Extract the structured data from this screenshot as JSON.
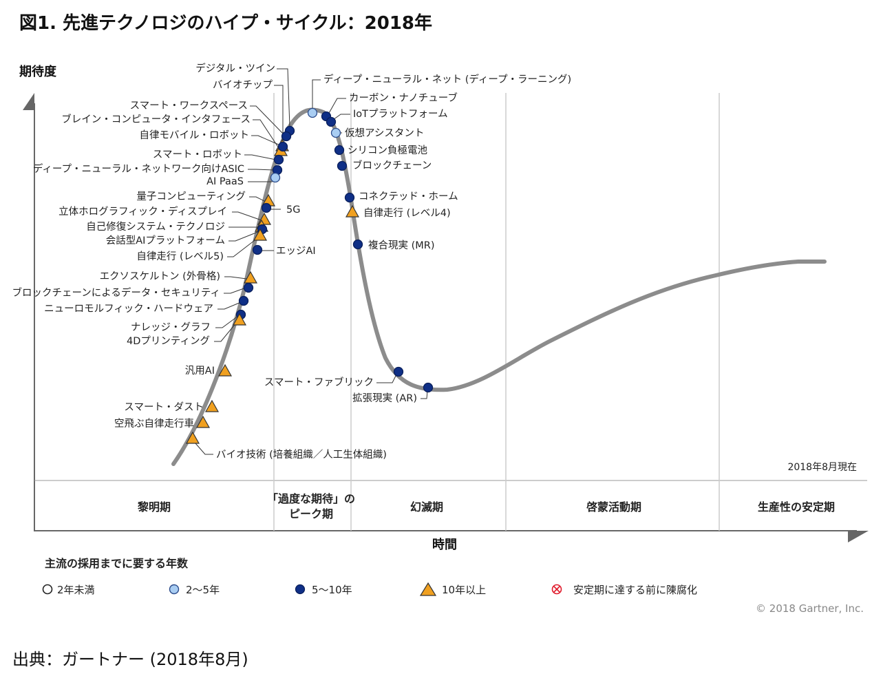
{
  "title": "図1. 先進テクノロジのハイプ・サイクル：2018年",
  "y_axis_label": "期待度",
  "x_axis_label": "時間",
  "as_of": "2018年8月現在",
  "copyright": "© 2018 Gartner, Inc.",
  "source": "出典：ガートナー (2018年8月)",
  "legend": {
    "title": "主流の採用までに要する年数",
    "items": [
      {
        "key": "lt2",
        "label": "2年未満"
      },
      {
        "key": "2to5",
        "label": "2～5年"
      },
      {
        "key": "5to10",
        "label": "5～10年"
      },
      {
        "key": "gt10",
        "label": "10年以上"
      },
      {
        "key": "obsolete",
        "label": "安定期に達する前に陳腐化"
      }
    ]
  },
  "colors": {
    "curve": "#8c8c8c",
    "dark_blue": "#0f2f86",
    "light_blue": "#a9cdf2",
    "orange": "#f0a020",
    "obsolete_red": "#e0192a",
    "gridline": "#cccccc"
  },
  "chart_data": {
    "type": "scatter",
    "phases": [
      "黎明期",
      "「過度な期待」の\nピーク期",
      "幻滅期",
      "啓蒙活動期",
      "生産性の安定期"
    ],
    "technologies": [
      {
        "name": "デジタル・ツイン",
        "category": "5to10",
        "phase": 1
      },
      {
        "name": "バイオチップ",
        "category": "gt10",
        "phase": 1
      },
      {
        "name": "スマート・ワークスペース",
        "category": "5to10",
        "phase": 1
      },
      {
        "name": "ブレイン・コンピュータ・インタフェース",
        "category": "gt10",
        "phase": 1
      },
      {
        "name": "自律モバイル・ロボット",
        "category": "5to10",
        "phase": 1
      },
      {
        "name": "スマート・ロボット",
        "category": "5to10",
        "phase": 1
      },
      {
        "name": "ディープ・ニューラル・ネットワーク向けASIC",
        "category": "5to10",
        "phase": 1
      },
      {
        "name": "AI PaaS",
        "category": "2to5",
        "phase": 1
      },
      {
        "name": "量子コンピューティング",
        "category": "gt10",
        "phase": 0
      },
      {
        "name": "5G",
        "category": "5to10",
        "phase": 0
      },
      {
        "name": "立体ホログラフィック・ディスプレイ",
        "category": "gt10",
        "phase": 0
      },
      {
        "name": "自己修復システム・テクノロジ",
        "category": "gt10",
        "phase": 0
      },
      {
        "name": "会話型AIプラットフォーム",
        "category": "5to10",
        "phase": 0
      },
      {
        "name": "自律走行 (レベル5)",
        "category": "gt10",
        "phase": 0
      },
      {
        "name": "エッジAI",
        "category": "5to10",
        "phase": 0
      },
      {
        "name": "エクソスケルトン (外骨格)",
        "category": "gt10",
        "phase": 0
      },
      {
        "name": "ブロックチェーンによるデータ・セキュリティ",
        "category": "5to10",
        "phase": 0
      },
      {
        "name": "ニューロモルフィック・ハードウェア",
        "category": "5to10",
        "phase": 0
      },
      {
        "name": "ナレッジ・グラフ",
        "category": "5to10",
        "phase": 0
      },
      {
        "name": "4Dプリンティング",
        "category": "gt10",
        "phase": 0
      },
      {
        "name": "汎用AI",
        "category": "gt10",
        "phase": 0
      },
      {
        "name": "スマート・ダスト",
        "category": "gt10",
        "phase": 0
      },
      {
        "name": "空飛ぶ自律走行車",
        "category": "gt10",
        "phase": 0
      },
      {
        "name": "バイオ技術 (培養組織／人工生体組織)",
        "category": "gt10",
        "phase": 0
      },
      {
        "name": "ディープ・ニューラル・ネット (ディープ・ラーニング)",
        "category": "2to5",
        "phase": 1
      },
      {
        "name": "カーボン・ナノチューブ",
        "category": "5to10",
        "phase": 1
      },
      {
        "name": "IoTプラットフォーム",
        "category": "5to10",
        "phase": 1
      },
      {
        "name": "仮想アシスタント",
        "category": "2to5",
        "phase": 2
      },
      {
        "name": "シリコン負極電池",
        "category": "5to10",
        "phase": 2
      },
      {
        "name": "ブロックチェーン",
        "category": "5to10",
        "phase": 2
      },
      {
        "name": "コネクテッド・ホーム",
        "category": "5to10",
        "phase": 2
      },
      {
        "name": "自律走行 (レベル4)",
        "category": "gt10",
        "phase": 2
      },
      {
        "name": "複合現実 (MR)",
        "category": "5to10",
        "phase": 2
      },
      {
        "name": "スマート・ファブリック",
        "category": "5to10",
        "phase": 2
      },
      {
        "name": "拡張現実 (AR)",
        "category": "5to10",
        "phase": 2
      }
    ]
  }
}
